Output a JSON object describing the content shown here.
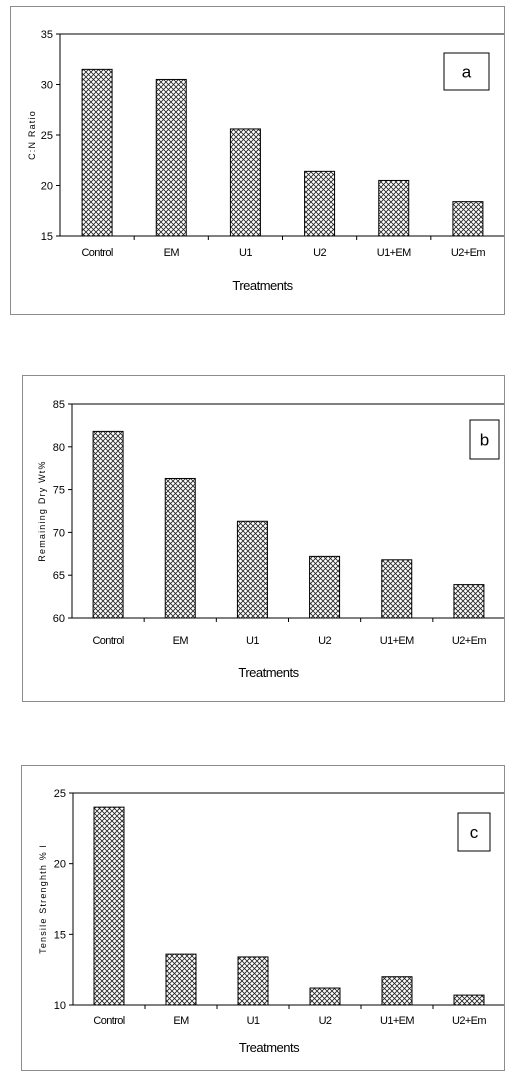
{
  "chart_data": [
    {
      "type": "bar",
      "categories": [
        "Control",
        "EM",
        "U1",
        "U2",
        "U1+EM",
        "U2+Em"
      ],
      "values": [
        31.5,
        30.5,
        25.6,
        21.4,
        20.5,
        18.4
      ],
      "xlabel": "Treatments",
      "ylabel": "C:N Ratio",
      "ylim": [
        15,
        35
      ],
      "yticks": [
        "15",
        "20",
        "25",
        "30",
        "35"
      ],
      "tag": "a",
      "grid": false,
      "bar_pattern": "crosshatch"
    },
    {
      "type": "bar",
      "categories": [
        "Control",
        "EM",
        "U1",
        "U2",
        "U1+EM",
        "U2+Em"
      ],
      "values": [
        81.8,
        76.3,
        71.3,
        67.2,
        66.8,
        63.9
      ],
      "xlabel": "Treatments",
      "ylabel": "Remaining Dry Wt%",
      "ylim": [
        60,
        85
      ],
      "yticks": [
        "60",
        "65",
        "70",
        "75",
        "80",
        "85"
      ],
      "tag": "b",
      "grid": false,
      "bar_pattern": "crosshatch"
    },
    {
      "type": "bar",
      "categories": [
        "Control",
        "EM",
        "U1",
        "U2",
        "U1+EM",
        "U2+Em"
      ],
      "values": [
        24.0,
        13.6,
        13.4,
        11.2,
        12.0,
        10.7
      ],
      "xlabel": "Treatments",
      "ylabel": "Tensile Strenghth % l",
      "ylim": [
        10,
        25
      ],
      "yticks": [
        "10",
        "15",
        "20",
        "25"
      ],
      "tag": "c",
      "grid": false,
      "bar_pattern": "crosshatch"
    }
  ]
}
